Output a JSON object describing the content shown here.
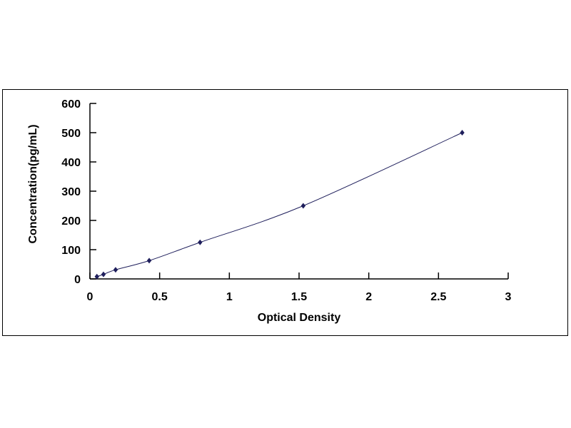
{
  "chart_data": {
    "type": "line",
    "title": "",
    "xlabel": "Optical Density",
    "ylabel": "Concentration(pg/mL)",
    "xlim": [
      0,
      3
    ],
    "ylim": [
      0,
      600
    ],
    "xticks": [
      "0",
      "0.5",
      "1",
      "1.5",
      "2",
      "2.5",
      "3"
    ],
    "yticks": [
      "0",
      "100",
      "200",
      "300",
      "400",
      "500",
      "600"
    ],
    "grid": false,
    "series": [
      {
        "x": [
          0.05,
          0.097,
          0.184,
          0.425,
          0.79,
          1.53,
          2.67
        ],
        "y": [
          7.8,
          15.6,
          31.2,
          62.5,
          125,
          250,
          500
        ],
        "color": "#1f1f5c",
        "marker": "diamond",
        "smooth": true
      }
    ]
  }
}
